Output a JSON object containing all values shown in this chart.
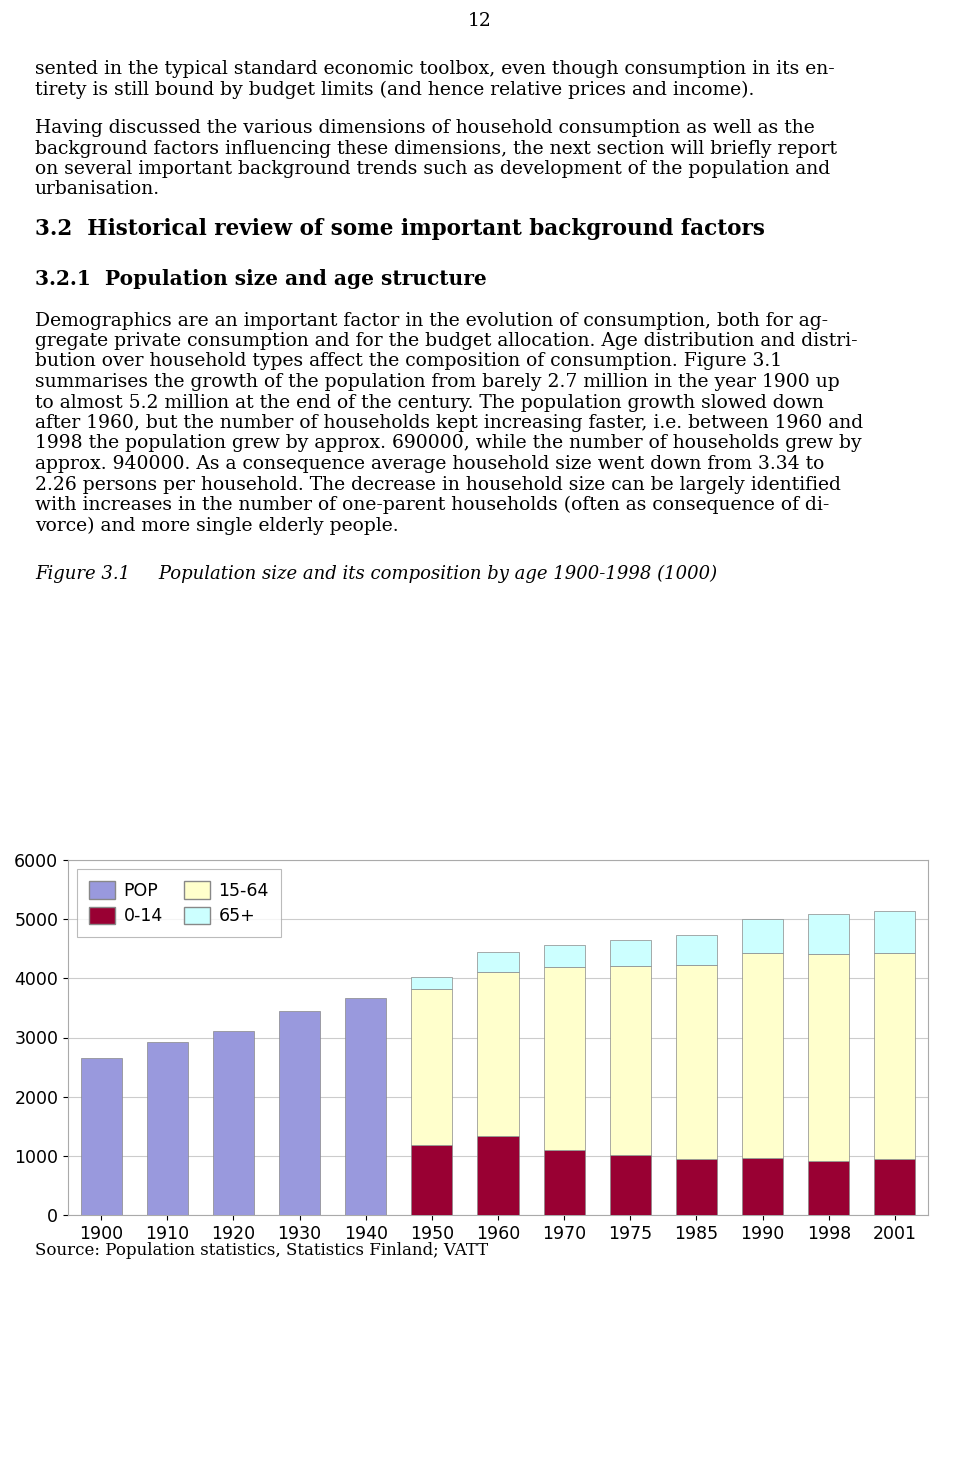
{
  "page_number": "12",
  "para1_line1": "sented in the typical standard economic toolbox, even though consumption in its en-",
  "para1_line2": "tirety is still bound by budget limits (and hence relative prices and income).",
  "para2_line1": "Having discussed the various dimensions of household consumption as well as the",
  "para2_line2": "background factors influencing these dimensions, the next section will briefly report",
  "para2_line3": "on several important background trends such as development of the population and",
  "para2_line4": "urbanisation.",
  "heading1": "3.2  Historical review of some important background factors",
  "heading2": "3.2.1  Population size and age structure",
  "para3_lines": [
    "Demographics are an important factor in the evolution of consumption, both for ag-",
    "gregate private consumption and for the budget allocation. Age distribution and distri-",
    "bution over household types affect the composition of consumption. Figure 3.1",
    "summarises the growth of the population from barely 2.7 million in the year 1900 up",
    "to almost 5.2 million at the end of the century. The population growth slowed down",
    "after 1960, but the number of households kept increasing faster, i.e. between 1960 and",
    "1998 the population grew by approx. 690000, while the number of households grew by",
    "approx. 940000. As a consequence average household size went down from 3.34 to",
    "2.26 persons per household. The decrease in household size can be largely identified",
    "with increases in the number of one-parent households (often as consequence of di-",
    "vorce) and more single elderly people."
  ],
  "figure_caption": "Figure 3.1     Population size and its composition by age 1900-1998 (1000)",
  "source_note": "Source: Population statistics, Statistics Finland; VATT",
  "years": [
    1900,
    1910,
    1920,
    1930,
    1940,
    1950,
    1960,
    1970,
    1975,
    1985,
    1990,
    1998,
    2001
  ],
  "pop_only": [
    2650,
    2930,
    3110,
    3450,
    3670,
    0,
    0,
    0,
    0,
    0,
    0,
    0,
    0
  ],
  "age_0_14": [
    0,
    0,
    0,
    0,
    0,
    1175,
    1340,
    1100,
    1020,
    950,
    970,
    920,
    950
  ],
  "age_15_64": [
    0,
    0,
    0,
    0,
    0,
    2640,
    2760,
    3090,
    3185,
    3280,
    3460,
    3490,
    3480
  ],
  "age_65plus": [
    0,
    0,
    0,
    0,
    0,
    215,
    340,
    380,
    440,
    510,
    570,
    670,
    710
  ],
  "color_pop": "#9999dd",
  "color_0_14": "#990033",
  "color_15_64": "#ffffcc",
  "color_65plus": "#ccffff",
  "ylim": [
    0,
    6000
  ],
  "yticks": [
    0,
    1000,
    2000,
    3000,
    4000,
    5000,
    6000
  ],
  "background_color": "#ffffff",
  "grid_color": "#cccccc",
  "text_fontsize": 13.5,
  "heading1_fontsize": 15.5,
  "heading2_fontsize": 14.5,
  "caption_fontsize": 13.0,
  "source_fontsize": 12.0,
  "tick_fontsize": 12.5,
  "legend_fontsize": 12.5
}
